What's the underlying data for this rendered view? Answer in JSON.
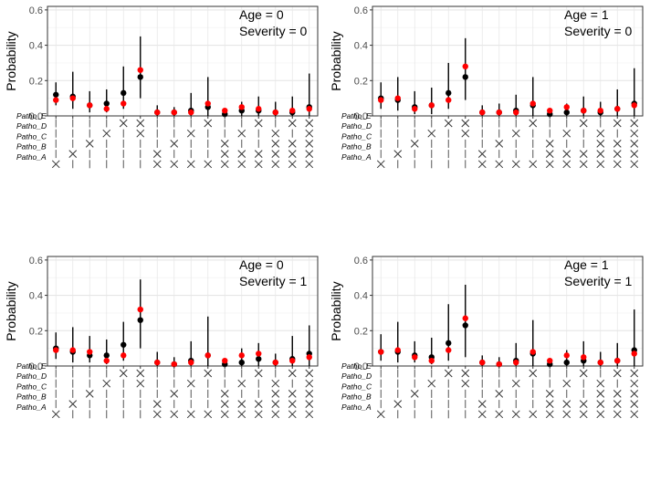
{
  "chart_data": [
    {
      "type": "scatter",
      "title": "",
      "ylabel": "Probability",
      "xlabel": "",
      "ylim": [
        0,
        0.62
      ],
      "yticks": [
        "0.0",
        "0.2",
        "0.4",
        "0.6"
      ],
      "annotation": [
        "Age = 0",
        "Severity = 0"
      ],
      "grid": true,
      "markers": {
        "observed": "#000000",
        "predicted": "#ff0000"
      },
      "pattern_labels": [
        "Patho_E",
        "Patho_D",
        "Patho_C",
        "Patho_B",
        "Patho_A"
      ],
      "x": [
        1,
        2,
        3,
        4,
        5,
        6,
        7,
        8,
        9,
        10,
        11,
        12,
        13,
        14,
        15,
        16
      ],
      "observed": [
        0.12,
        0.11,
        0.06,
        0.07,
        0.13,
        0.22,
        0.02,
        0.02,
        0.03,
        0.05,
        0.01,
        0.03,
        0.03,
        0.02,
        0.02,
        0.05
      ],
      "lower": [
        0.06,
        0.04,
        0.02,
        0.02,
        0.04,
        0.1,
        0.0,
        0.0,
        0.0,
        0.0,
        0.0,
        0.0,
        0.0,
        0.0,
        0.0,
        0.0
      ],
      "upper": [
        0.19,
        0.25,
        0.14,
        0.15,
        0.28,
        0.45,
        0.06,
        0.05,
        0.13,
        0.22,
        0.04,
        0.08,
        0.11,
        0.08,
        0.11,
        0.24
      ],
      "predicted": [
        0.09,
        0.1,
        0.06,
        0.04,
        0.07,
        0.26,
        0.02,
        0.02,
        0.02,
        0.07,
        0.03,
        0.05,
        0.04,
        0.02,
        0.03,
        0.04
      ]
    },
    {
      "type": "scatter",
      "title": "",
      "ylabel": "Probability",
      "xlabel": "",
      "ylim": [
        0,
        0.62
      ],
      "yticks": [
        "0.0",
        "0.2",
        "0.4",
        "0.6"
      ],
      "annotation": [
        "Age = 1",
        "Severity = 0"
      ],
      "grid": true,
      "markers": {
        "observed": "#000000",
        "predicted": "#ff0000"
      },
      "pattern_labels": [
        "Patho_E",
        "Patho_D",
        "Patho_C",
        "Patho_B",
        "Patho_A"
      ],
      "x": [
        1,
        2,
        3,
        4,
        5,
        6,
        7,
        8,
        9,
        10,
        11,
        12,
        13,
        14,
        15,
        16
      ],
      "observed": [
        0.1,
        0.09,
        0.05,
        0.06,
        0.13,
        0.22,
        0.02,
        0.02,
        0.03,
        0.06,
        0.01,
        0.02,
        0.03,
        0.02,
        0.04,
        0.07
      ],
      "lower": [
        0.04,
        0.03,
        0.01,
        0.01,
        0.04,
        0.09,
        0.0,
        0.0,
        0.0,
        0.0,
        0.0,
        0.0,
        0.0,
        0.0,
        0.0,
        0.0
      ],
      "upper": [
        0.19,
        0.22,
        0.14,
        0.16,
        0.3,
        0.44,
        0.06,
        0.07,
        0.12,
        0.22,
        0.04,
        0.07,
        0.11,
        0.08,
        0.15,
        0.27
      ],
      "predicted": [
        0.09,
        0.1,
        0.04,
        0.06,
        0.09,
        0.28,
        0.02,
        0.02,
        0.02,
        0.07,
        0.03,
        0.05,
        0.03,
        0.03,
        0.04,
        0.06
      ]
    },
    {
      "type": "scatter",
      "title": "",
      "ylabel": "Probability",
      "xlabel": "",
      "ylim": [
        0,
        0.62
      ],
      "yticks": [
        "0.0",
        "0.2",
        "0.4",
        "0.6"
      ],
      "annotation": [
        "Age = 0",
        "Severity = 1"
      ],
      "grid": true,
      "markers": {
        "observed": "#000000",
        "predicted": "#ff0000"
      },
      "pattern_labels": [
        "Patho_E",
        "Patho_D",
        "Patho_C",
        "Patho_B",
        "Patho_A"
      ],
      "x": [
        1,
        2,
        3,
        4,
        5,
        6,
        7,
        8,
        9,
        10,
        11,
        12,
        13,
        14,
        15,
        16
      ],
      "observed": [
        0.1,
        0.08,
        0.06,
        0.06,
        0.12,
        0.26,
        0.02,
        0.01,
        0.03,
        0.06,
        0.01,
        0.02,
        0.04,
        0.02,
        0.04,
        0.07
      ],
      "lower": [
        0.04,
        0.02,
        0.02,
        0.01,
        0.03,
        0.1,
        0.0,
        0.0,
        0.0,
        0.0,
        0.0,
        0.0,
        0.0,
        0.0,
        0.0,
        0.0
      ],
      "upper": [
        0.19,
        0.22,
        0.17,
        0.15,
        0.25,
        0.49,
        0.08,
        0.05,
        0.14,
        0.28,
        0.04,
        0.1,
        0.13,
        0.07,
        0.17,
        0.23
      ],
      "predicted": [
        0.09,
        0.09,
        0.08,
        0.03,
        0.06,
        0.32,
        0.02,
        0.01,
        0.02,
        0.06,
        0.03,
        0.06,
        0.07,
        0.02,
        0.03,
        0.05
      ]
    },
    {
      "type": "scatter",
      "title": "",
      "ylabel": "Probability",
      "xlabel": "",
      "ylim": [
        0,
        0.62
      ],
      "yticks": [
        "0.0",
        "0.2",
        "0.4",
        "0.6"
      ],
      "annotation": [
        "Age = 1",
        "Severity = 1"
      ],
      "grid": true,
      "markers": {
        "observed": "#000000",
        "predicted": "#ff0000"
      },
      "pattern_labels": [
        "Patho_E",
        "Patho_D",
        "Patho_C",
        "Patho_B",
        "Patho_A"
      ],
      "x": [
        1,
        2,
        3,
        4,
        5,
        6,
        7,
        8,
        9,
        10,
        11,
        12,
        13,
        14,
        15,
        16
      ],
      "observed": [
        0.08,
        0.08,
        0.06,
        0.05,
        0.13,
        0.23,
        0.02,
        0.01,
        0.03,
        0.07,
        0.01,
        0.02,
        0.03,
        0.02,
        0.03,
        0.09
      ],
      "lower": [
        0.03,
        0.02,
        0.02,
        0.01,
        0.03,
        0.05,
        0.0,
        0.0,
        0.0,
        0.0,
        0.0,
        0.0,
        0.0,
        0.0,
        0.0,
        0.0
      ],
      "upper": [
        0.18,
        0.25,
        0.14,
        0.16,
        0.35,
        0.46,
        0.06,
        0.05,
        0.13,
        0.26,
        0.04,
        0.09,
        0.14,
        0.08,
        0.13,
        0.32
      ],
      "predicted": [
        0.08,
        0.09,
        0.05,
        0.03,
        0.09,
        0.27,
        0.02,
        0.01,
        0.02,
        0.08,
        0.03,
        0.06,
        0.05,
        0.02,
        0.03,
        0.07
      ]
    }
  ],
  "patterns": [
    [
      "|",
      "|",
      "|",
      "|",
      "X"
    ],
    [
      "|",
      "|",
      "|",
      "X",
      "|"
    ],
    [
      "|",
      "|",
      "X",
      "|",
      "|"
    ],
    [
      "|",
      "X",
      "|",
      "|",
      "|"
    ],
    [
      "X",
      "|",
      "|",
      "|",
      "|"
    ],
    [
      "X",
      "X",
      "|",
      "|",
      "|"
    ],
    [
      "|",
      "|",
      "|",
      "X",
      "X"
    ],
    [
      "|",
      "|",
      "X",
      "|",
      "X"
    ],
    [
      "|",
      "X",
      "|",
      "|",
      "X"
    ],
    [
      "X",
      "|",
      "|",
      "|",
      "X"
    ],
    [
      "|",
      "|",
      "X",
      "X",
      "X"
    ],
    [
      "|",
      "X",
      "|",
      "X",
      "X"
    ],
    [
      "X",
      "|",
      "|",
      "X",
      "X"
    ],
    [
      "|",
      "X",
      "X",
      "X",
      "X"
    ],
    [
      "X",
      "|",
      "X",
      "X",
      "X"
    ],
    [
      "X",
      "X",
      "X",
      "X",
      "X"
    ]
  ]
}
